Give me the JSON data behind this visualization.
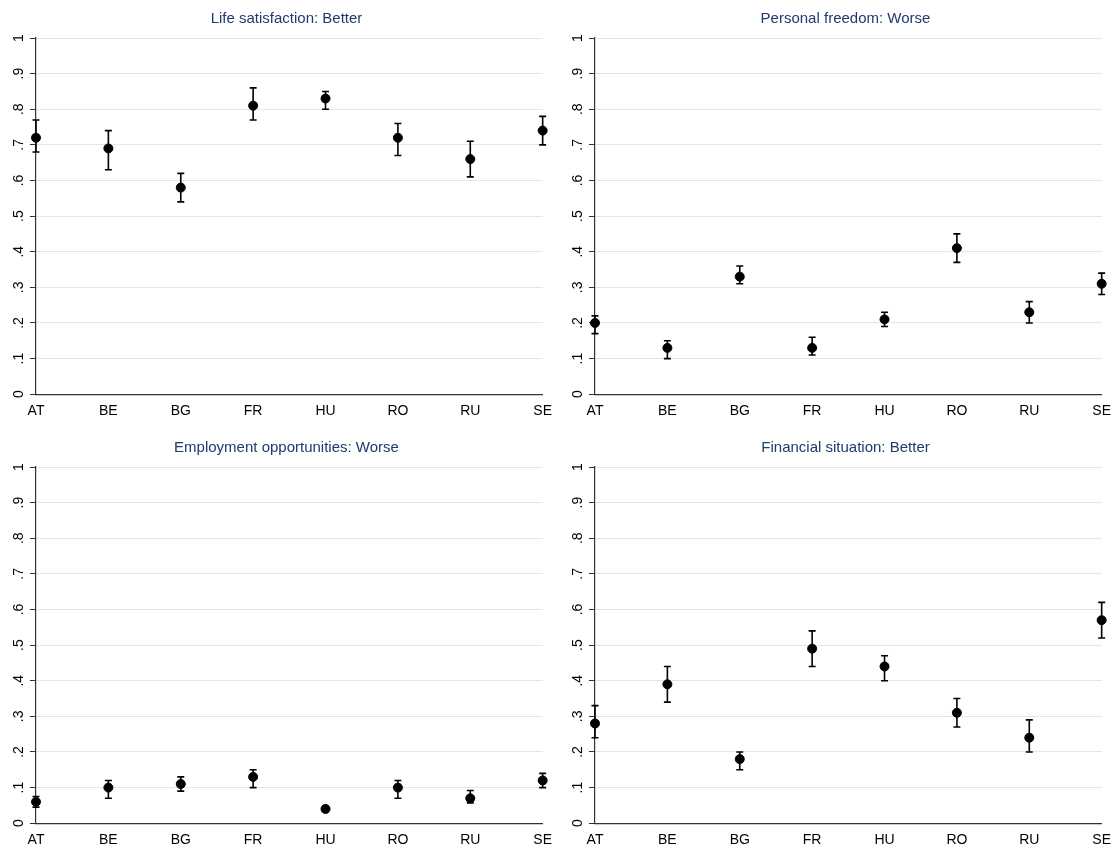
{
  "chart_data": [
    {
      "type": "scatter",
      "title": "Life satisfaction: Better",
      "categories": [
        "AT",
        "BE",
        "BG",
        "FR",
        "HU",
        "RO",
        "RU",
        "SE"
      ],
      "series": [
        {
          "color": "#000000",
          "values": [
            0.72,
            0.69,
            0.58,
            0.81,
            0.83,
            0.72,
            0.66,
            0.74
          ],
          "errors": [
            [
              0.68,
              0.77
            ],
            [
              0.63,
              0.74
            ],
            [
              0.54,
              0.62
            ],
            [
              0.77,
              0.86
            ],
            [
              0.8,
              0.85
            ],
            [
              0.67,
              0.76
            ],
            [
              0.61,
              0.71
            ],
            [
              0.7,
              0.78
            ]
          ]
        }
      ],
      "ylim": [
        0,
        1
      ],
      "yticks": [
        {
          "value": 0,
          "label": "0"
        },
        {
          "value": 0.1,
          "label": ".1"
        },
        {
          "value": 0.2,
          "label": ".2"
        },
        {
          "value": 0.3,
          "label": ".3"
        },
        {
          "value": 0.4,
          "label": ".4"
        },
        {
          "value": 0.5,
          "label": ".5"
        },
        {
          "value": 0.6,
          "label": ".6"
        },
        {
          "value": 0.7,
          "label": ".7"
        },
        {
          "value": 0.8,
          "label": ".8"
        },
        {
          "value": 0.9,
          "label": ".9"
        },
        {
          "value": 1,
          "label": "1"
        }
      ],
      "grid": "y",
      "marker": "circle",
      "legend": false
    },
    {
      "type": "scatter",
      "title": "Personal freedom: Worse",
      "categories": [
        "AT",
        "BE",
        "BG",
        "FR",
        "HU",
        "RO",
        "RU",
        "SE"
      ],
      "series": [
        {
          "color": "#000000",
          "values": [
            0.2,
            0.13,
            0.33,
            0.13,
            0.21,
            0.41,
            0.23,
            0.31
          ],
          "errors": [
            [
              0.17,
              0.22
            ],
            [
              0.1,
              0.15
            ],
            [
              0.31,
              0.36
            ],
            [
              0.11,
              0.16
            ],
            [
              0.19,
              0.23
            ],
            [
              0.37,
              0.45
            ],
            [
              0.2,
              0.26
            ],
            [
              0.28,
              0.34
            ]
          ]
        }
      ],
      "ylim": [
        0,
        1
      ],
      "yticks": [
        {
          "value": 0,
          "label": "0"
        },
        {
          "value": 0.1,
          "label": ".1"
        },
        {
          "value": 0.2,
          "label": ".2"
        },
        {
          "value": 0.3,
          "label": ".3"
        },
        {
          "value": 0.4,
          "label": ".4"
        },
        {
          "value": 0.5,
          "label": ".5"
        },
        {
          "value": 0.6,
          "label": ".6"
        },
        {
          "value": 0.7,
          "label": ".7"
        },
        {
          "value": 0.8,
          "label": ".8"
        },
        {
          "value": 0.9,
          "label": ".9"
        },
        {
          "value": 1,
          "label": "1"
        }
      ],
      "grid": "y",
      "marker": "circle",
      "legend": false
    },
    {
      "type": "scatter",
      "title": "Employment opportunities: Worse",
      "categories": [
        "AT",
        "BE",
        "BG",
        "FR",
        "HU",
        "RO",
        "RU",
        "SE"
      ],
      "series": [
        {
          "color": "#000000",
          "values": [
            0.06,
            0.1,
            0.11,
            0.13,
            0.04,
            0.1,
            0.07,
            0.12
          ],
          "errors": [
            [
              0.045,
              0.075
            ],
            [
              0.07,
              0.12
            ],
            [
              0.09,
              0.13
            ],
            [
              0.1,
              0.15
            ],
            [
              0.034,
              0.048
            ],
            [
              0.07,
              0.12
            ],
            [
              0.057,
              0.092
            ],
            [
              0.1,
              0.14
            ]
          ]
        }
      ],
      "ylim": [
        0,
        1
      ],
      "yticks": [
        {
          "value": 0,
          "label": "0"
        },
        {
          "value": 0.1,
          "label": ".1"
        },
        {
          "value": 0.2,
          "label": ".2"
        },
        {
          "value": 0.3,
          "label": ".3"
        },
        {
          "value": 0.4,
          "label": ".4"
        },
        {
          "value": 0.5,
          "label": ".5"
        },
        {
          "value": 0.6,
          "label": ".6"
        },
        {
          "value": 0.7,
          "label": ".7"
        },
        {
          "value": 0.8,
          "label": ".8"
        },
        {
          "value": 0.9,
          "label": ".9"
        },
        {
          "value": 1,
          "label": "1"
        }
      ],
      "grid": "y",
      "marker": "circle",
      "legend": false
    },
    {
      "type": "scatter",
      "title": "Financial situation: Better",
      "categories": [
        "AT",
        "BE",
        "BG",
        "FR",
        "HU",
        "RO",
        "RU",
        "SE"
      ],
      "series": [
        {
          "color": "#000000",
          "values": [
            0.28,
            0.39,
            0.18,
            0.49,
            0.44,
            0.31,
            0.24,
            0.57
          ],
          "errors": [
            [
              0.24,
              0.33
            ],
            [
              0.34,
              0.44
            ],
            [
              0.15,
              0.2
            ],
            [
              0.44,
              0.54
            ],
            [
              0.4,
              0.47
            ],
            [
              0.27,
              0.35
            ],
            [
              0.2,
              0.29
            ],
            [
              0.52,
              0.62
            ]
          ]
        }
      ],
      "ylim": [
        0,
        1
      ],
      "yticks": [
        {
          "value": 0,
          "label": "0"
        },
        {
          "value": 0.1,
          "label": ".1"
        },
        {
          "value": 0.2,
          "label": ".2"
        },
        {
          "value": 0.3,
          "label": ".3"
        },
        {
          "value": 0.4,
          "label": ".4"
        },
        {
          "value": 0.5,
          "label": ".5"
        },
        {
          "value": 0.6,
          "label": ".6"
        },
        {
          "value": 0.7,
          "label": ".7"
        },
        {
          "value": 0.8,
          "label": ".8"
        },
        {
          "value": 0.9,
          "label": ".9"
        },
        {
          "value": 1,
          "label": "1"
        }
      ],
      "grid": "y",
      "marker": "circle",
      "legend": false
    }
  ]
}
